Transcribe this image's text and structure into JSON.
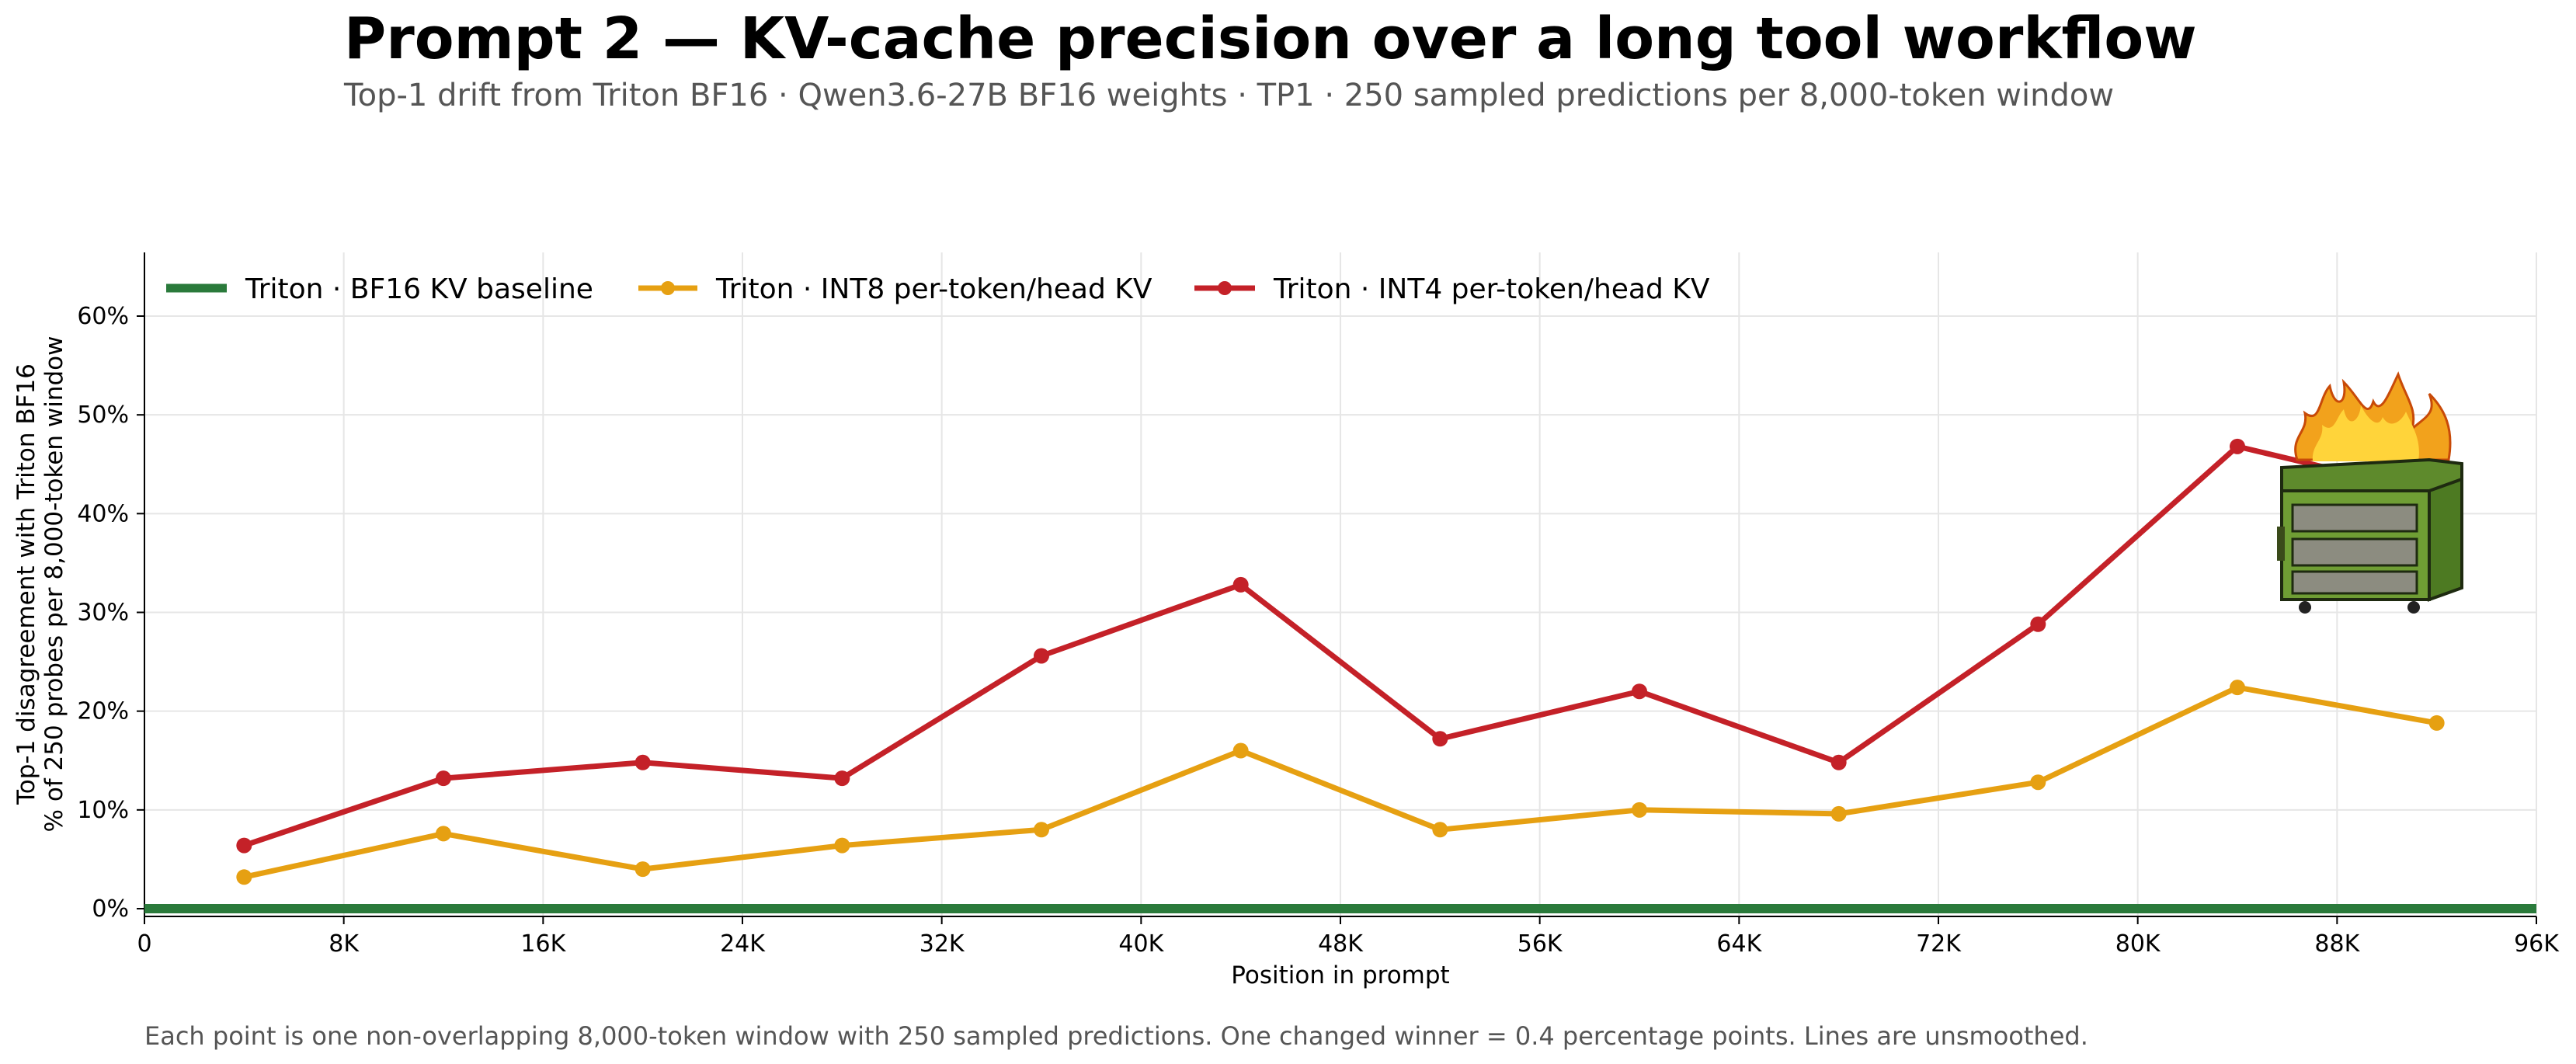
{
  "chart_data": {
    "type": "line",
    "title": "Prompt 2 — KV-cache precision over a long tool workflow",
    "subtitle": "Top-1 drift from Triton BF16 · Qwen3.6-27B BF16 weights · TP1 · 250 sampled predictions per 8,000-token window",
    "xlabel": "Position in prompt",
    "ylabel_lines": [
      "Top-1 disagreement with Triton BF16",
      "% of 250 probes per 8,000-token window"
    ],
    "xlim": [
      0,
      96000
    ],
    "ylim": [
      -1,
      60
    ],
    "x_ticks": [
      0,
      8000,
      16000,
      24000,
      32000,
      40000,
      48000,
      56000,
      64000,
      72000,
      80000,
      88000,
      96000
    ],
    "x_tick_labels": [
      "0",
      "8K",
      "16K",
      "24K",
      "32K",
      "40K",
      "48K",
      "56K",
      "64K",
      "72K",
      "80K",
      "88K",
      "96K"
    ],
    "y_ticks": [
      0,
      10,
      20,
      30,
      40,
      50,
      60
    ],
    "y_tick_labels": [
      "0%",
      "10%",
      "20%",
      "30%",
      "40%",
      "50%",
      "60%"
    ],
    "grid": true,
    "legend_position": "top-left",
    "x": [
      4000,
      12000,
      20000,
      28000,
      36000,
      44000,
      52000,
      60000,
      68000,
      76000,
      84000,
      92000
    ],
    "series": [
      {
        "name": "Triton · BF16 KV baseline",
        "color": "#2a7a3b",
        "markers": false,
        "x": [
          0,
          96000
        ],
        "values": [
          0,
          0
        ]
      },
      {
        "name": "Triton · INT8 per-token/head KV",
        "color": "#e6a012",
        "markers": true,
        "values": [
          3.2,
          7.6,
          4.0,
          6.4,
          8.0,
          16.0,
          8.0,
          10.0,
          9.6,
          12.8,
          22.4,
          18.8
        ]
      },
      {
        "name": "Triton · INT4 per-token/head KV",
        "color": "#c42128",
        "markers": true,
        "values": [
          6.4,
          13.2,
          14.8,
          13.2,
          25.6,
          32.8,
          17.2,
          22.0,
          14.8,
          28.8,
          46.8,
          42.0
        ]
      }
    ],
    "annotation_icon": "dumpster-fire-icon",
    "footnote": "Each point is one non-overlapping 8,000-token window with 250 sampled predictions. One changed winner = 0.4 percentage points. Lines are unsmoothed."
  }
}
